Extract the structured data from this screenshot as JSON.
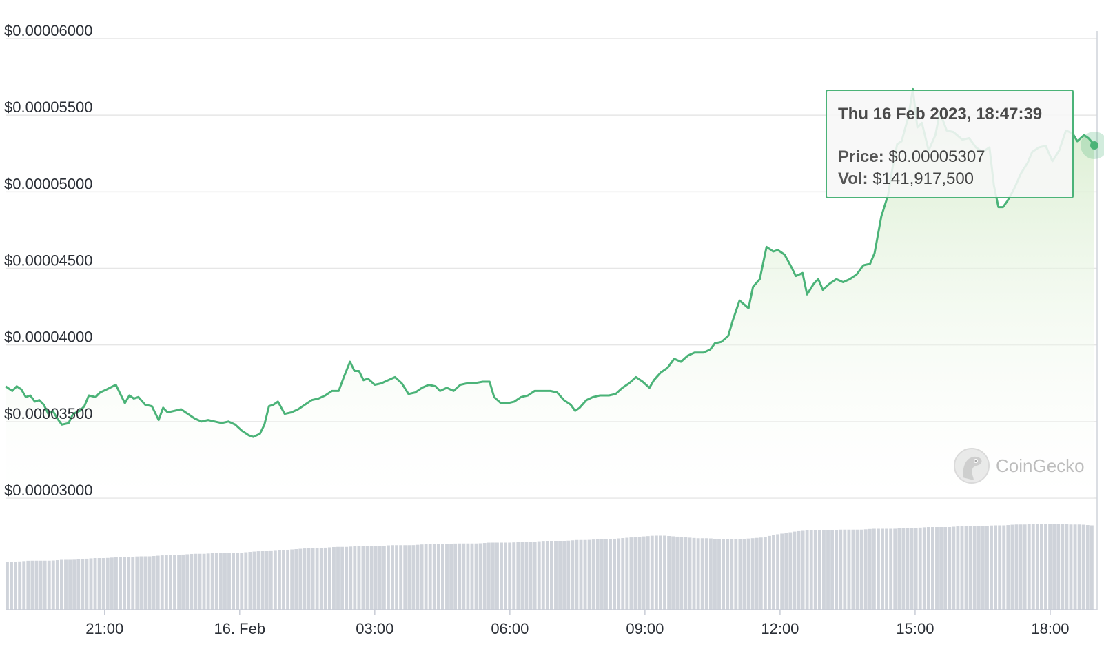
{
  "chart_data": {
    "type": "line",
    "title": "",
    "xlabel": "",
    "ylabel": "",
    "ylim": [
      2.75e-05,
      6.05e-05
    ],
    "y_ticks": [
      "$0.00006000",
      "$0.00005500",
      "$0.00005000",
      "$0.00004500",
      "$0.00004000",
      "$0.00003500",
      "$0.00003000"
    ],
    "y_tick_values": [
      6e-05,
      5.5e-05,
      5e-05,
      4.5e-05,
      4e-05,
      3.5e-05,
      3e-05
    ],
    "x_ticks": [
      "21:00",
      "16. Feb",
      "03:00",
      "06:00",
      "09:00",
      "12:00",
      "15:00",
      "18:00"
    ],
    "x_tick_hours": [
      21,
      24,
      27,
      30,
      33,
      36,
      39,
      42
    ],
    "x_range_hours": [
      18.8,
      42.98
    ],
    "grid": true,
    "series": [
      {
        "values": [
          [
            18.8,
            3.73e-05
          ],
          [
            18.95,
            3.7e-05
          ],
          [
            19.05,
            3.73e-05
          ],
          [
            19.15,
            3.71e-05
          ],
          [
            19.25,
            3.66e-05
          ],
          [
            19.35,
            3.67e-05
          ],
          [
            19.45,
            3.63e-05
          ],
          [
            19.55,
            3.64e-05
          ],
          [
            19.65,
            3.61e-05
          ],
          [
            19.75,
            3.55e-05
          ],
          [
            19.85,
            3.57e-05
          ],
          [
            19.95,
            3.52e-05
          ],
          [
            20.05,
            3.48e-05
          ],
          [
            20.2,
            3.49e-05
          ],
          [
            20.3,
            3.55e-05
          ],
          [
            20.45,
            3.57e-05
          ],
          [
            20.55,
            3.6e-05
          ],
          [
            20.65,
            3.67e-05
          ],
          [
            20.8,
            3.66e-05
          ],
          [
            20.9,
            3.69e-05
          ],
          [
            21.05,
            3.71e-05
          ],
          [
            21.25,
            3.74e-05
          ],
          [
            21.35,
            3.68e-05
          ],
          [
            21.45,
            3.62e-05
          ],
          [
            21.55,
            3.67e-05
          ],
          [
            21.65,
            3.65e-05
          ],
          [
            21.75,
            3.66e-05
          ],
          [
            21.9,
            3.61e-05
          ],
          [
            22.05,
            3.6e-05
          ],
          [
            22.2,
            3.51e-05
          ],
          [
            22.3,
            3.59e-05
          ],
          [
            22.4,
            3.56e-05
          ],
          [
            22.55,
            3.57e-05
          ],
          [
            22.7,
            3.58e-05
          ],
          [
            22.85,
            3.55e-05
          ],
          [
            23.0,
            3.52e-05
          ],
          [
            23.15,
            3.5e-05
          ],
          [
            23.3,
            3.51e-05
          ],
          [
            23.45,
            3.5e-05
          ],
          [
            23.6,
            3.49e-05
          ],
          [
            23.75,
            3.5e-05
          ],
          [
            23.9,
            3.48e-05
          ],
          [
            24.05,
            3.44e-05
          ],
          [
            24.2,
            3.41e-05
          ],
          [
            24.3,
            3.4e-05
          ],
          [
            24.45,
            3.42e-05
          ],
          [
            24.55,
            3.48e-05
          ],
          [
            24.65,
            3.6e-05
          ],
          [
            24.75,
            3.61e-05
          ],
          [
            24.85,
            3.63e-05
          ],
          [
            25.0,
            3.55e-05
          ],
          [
            25.15,
            3.56e-05
          ],
          [
            25.3,
            3.58e-05
          ],
          [
            25.45,
            3.61e-05
          ],
          [
            25.6,
            3.64e-05
          ],
          [
            25.75,
            3.65e-05
          ],
          [
            25.9,
            3.67e-05
          ],
          [
            26.05,
            3.7e-05
          ],
          [
            26.2,
            3.7e-05
          ],
          [
            26.3,
            3.78e-05
          ],
          [
            26.45,
            3.89e-05
          ],
          [
            26.55,
            3.83e-05
          ],
          [
            26.65,
            3.83e-05
          ],
          [
            26.75,
            3.77e-05
          ],
          [
            26.85,
            3.78e-05
          ],
          [
            27.0,
            3.74e-05
          ],
          [
            27.15,
            3.75e-05
          ],
          [
            27.3,
            3.77e-05
          ],
          [
            27.45,
            3.79e-05
          ],
          [
            27.6,
            3.75e-05
          ],
          [
            27.75,
            3.68e-05
          ],
          [
            27.9,
            3.69e-05
          ],
          [
            28.05,
            3.72e-05
          ],
          [
            28.2,
            3.74e-05
          ],
          [
            28.35,
            3.73e-05
          ],
          [
            28.45,
            3.7e-05
          ],
          [
            28.6,
            3.72e-05
          ],
          [
            28.75,
            3.7e-05
          ],
          [
            28.9,
            3.74e-05
          ],
          [
            29.05,
            3.75e-05
          ],
          [
            29.2,
            3.75e-05
          ],
          [
            29.4,
            3.76e-05
          ],
          [
            29.55,
            3.76e-05
          ],
          [
            29.65,
            3.66e-05
          ],
          [
            29.8,
            3.62e-05
          ],
          [
            29.95,
            3.62e-05
          ],
          [
            30.1,
            3.63e-05
          ],
          [
            30.25,
            3.66e-05
          ],
          [
            30.4,
            3.67e-05
          ],
          [
            30.55,
            3.7e-05
          ],
          [
            30.75,
            3.7e-05
          ],
          [
            30.9,
            3.7e-05
          ],
          [
            31.05,
            3.69e-05
          ],
          [
            31.2,
            3.64e-05
          ],
          [
            31.35,
            3.61e-05
          ],
          [
            31.45,
            3.57e-05
          ],
          [
            31.55,
            3.59e-05
          ],
          [
            31.7,
            3.64e-05
          ],
          [
            31.85,
            3.66e-05
          ],
          [
            32.0,
            3.67e-05
          ],
          [
            32.2,
            3.67e-05
          ],
          [
            32.35,
            3.68e-05
          ],
          [
            32.5,
            3.72e-05
          ],
          [
            32.65,
            3.75e-05
          ],
          [
            32.8,
            3.79e-05
          ],
          [
            32.95,
            3.76e-05
          ],
          [
            33.1,
            3.72e-05
          ],
          [
            33.2,
            3.77e-05
          ],
          [
            33.35,
            3.82e-05
          ],
          [
            33.5,
            3.85e-05
          ],
          [
            33.65,
            3.91e-05
          ],
          [
            33.8,
            3.89e-05
          ],
          [
            33.95,
            3.93e-05
          ],
          [
            34.1,
            3.95e-05
          ],
          [
            34.3,
            3.95e-05
          ],
          [
            34.45,
            3.97e-05
          ],
          [
            34.55,
            4.01e-05
          ],
          [
            34.7,
            4.02e-05
          ],
          [
            34.85,
            4.06e-05
          ],
          [
            34.95,
            4.16e-05
          ],
          [
            35.1,
            4.29e-05
          ],
          [
            35.3,
            4.24e-05
          ],
          [
            35.4,
            4.38e-05
          ],
          [
            35.55,
            4.43e-05
          ],
          [
            35.7,
            4.64e-05
          ],
          [
            35.85,
            4.61e-05
          ],
          [
            35.95,
            4.62e-05
          ],
          [
            36.1,
            4.59e-05
          ],
          [
            36.25,
            4.51e-05
          ],
          [
            36.35,
            4.45e-05
          ],
          [
            36.5,
            4.47e-05
          ],
          [
            36.6,
            4.33e-05
          ],
          [
            36.75,
            4.4e-05
          ],
          [
            36.85,
            4.43e-05
          ],
          [
            36.95,
            4.36e-05
          ],
          [
            37.1,
            4.4e-05
          ],
          [
            37.25,
            4.43e-05
          ],
          [
            37.4,
            4.41e-05
          ],
          [
            37.55,
            4.43e-05
          ],
          [
            37.7,
            4.46e-05
          ],
          [
            37.85,
            4.52e-05
          ],
          [
            38.0,
            4.53e-05
          ],
          [
            38.1,
            4.6e-05
          ],
          [
            38.25,
            4.84e-05
          ],
          [
            38.4,
            4.98e-05
          ],
          [
            38.5,
            5.16e-05
          ],
          [
            38.6,
            5.31e-05
          ],
          [
            38.7,
            5.33e-05
          ],
          [
            38.85,
            5.49e-05
          ],
          [
            38.95,
            5.67e-05
          ],
          [
            39.05,
            5.42e-05
          ],
          [
            39.15,
            5.45e-05
          ],
          [
            39.3,
            5.27e-05
          ],
          [
            39.45,
            5.37e-05
          ],
          [
            39.55,
            5.52e-05
          ],
          [
            39.7,
            5.4e-05
          ],
          [
            39.85,
            5.39e-05
          ],
          [
            40.05,
            5.34e-05
          ],
          [
            40.2,
            5.35e-05
          ],
          [
            40.35,
            5.29e-05
          ],
          [
            40.5,
            5.26e-05
          ],
          [
            40.65,
            5.29e-05
          ],
          [
            40.75,
            5.04e-05
          ],
          [
            40.85,
            4.9e-05
          ],
          [
            40.95,
            4.9e-05
          ],
          [
            41.05,
            4.94e-05
          ],
          [
            41.2,
            5.02e-05
          ],
          [
            41.35,
            5.12e-05
          ],
          [
            41.5,
            5.19e-05
          ],
          [
            41.6,
            5.26e-05
          ],
          [
            41.75,
            5.29e-05
          ],
          [
            41.9,
            5.3e-05
          ],
          [
            42.05,
            5.2e-05
          ],
          [
            42.2,
            5.27e-05
          ],
          [
            42.35,
            5.4e-05
          ],
          [
            42.5,
            5.38e-05
          ],
          [
            42.6,
            5.33e-05
          ],
          [
            42.75,
            5.37e-05
          ],
          [
            42.85,
            5.35e-05
          ],
          [
            42.98,
            5.307e-05
          ]
        ]
      }
    ],
    "volume_relative": [
      0.56,
      0.56,
      0.57,
      0.57,
      0.57,
      0.58,
      0.58,
      0.59,
      0.6,
      0.6,
      0.61,
      0.61,
      0.62,
      0.62,
      0.63,
      0.64,
      0.64,
      0.65,
      0.65,
      0.66,
      0.66,
      0.66,
      0.67,
      0.68,
      0.68,
      0.69,
      0.7,
      0.71,
      0.72,
      0.72,
      0.73,
      0.73,
      0.74,
      0.74,
      0.74,
      0.75,
      0.75,
      0.75,
      0.76,
      0.76,
      0.76,
      0.77,
      0.77,
      0.77,
      0.78,
      0.78,
      0.78,
      0.79,
      0.79,
      0.8,
      0.8,
      0.8,
      0.81,
      0.81,
      0.82,
      0.82,
      0.83,
      0.84,
      0.85,
      0.86,
      0.86,
      0.85,
      0.84,
      0.83,
      0.83,
      0.82,
      0.82,
      0.82,
      0.83,
      0.84,
      0.87,
      0.89,
      0.91,
      0.92,
      0.92,
      0.92,
      0.93,
      0.93,
      0.93,
      0.94,
      0.94,
      0.94,
      0.95,
      0.95,
      0.96,
      0.96,
      0.96,
      0.97,
      0.97,
      0.97,
      0.98,
      0.98,
      0.99,
      0.99,
      1.0,
      1.0,
      1.0,
      0.99,
      0.99,
      0.98
    ]
  },
  "tooltip": {
    "title": "Thu 16 Feb 2023, 18:47:39",
    "price_label": "Price:",
    "price_value": "$0.00005307",
    "vol_label": "Vol:",
    "vol_value": "$141,917,500"
  },
  "watermark": {
    "text": "CoinGecko"
  },
  "colors": {
    "line": "#4bb378",
    "fill_top": "#dff0d8",
    "grid": "#e6e6e6",
    "volume_bar": "#cfd3da",
    "text": "#2b2f36"
  }
}
